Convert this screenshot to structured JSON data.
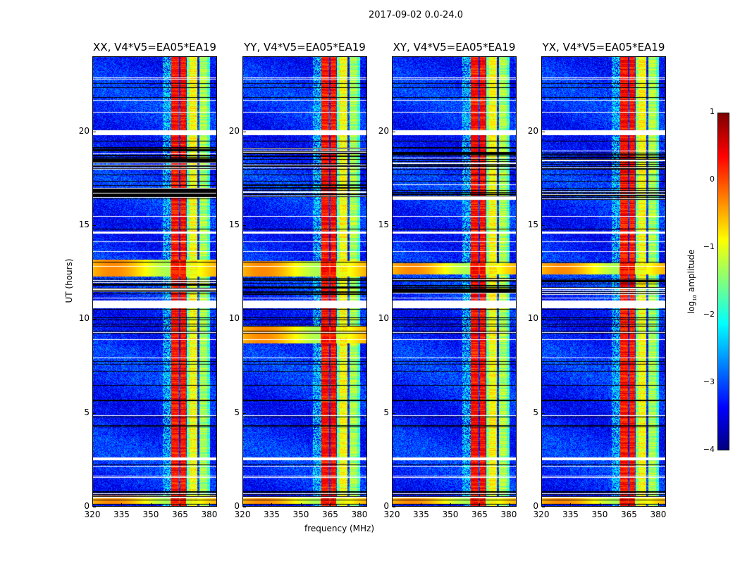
{
  "chart_data": {
    "type": "heatmap",
    "title": "2017-09-02 0.0-24.0",
    "xlabel": "frequency (MHz)",
    "ylabel": "UT (hours)",
    "xlim": [
      320,
      384
    ],
    "ylim": [
      0,
      24
    ],
    "xticks": [
      "320",
      "335",
      "350",
      "365",
      "380"
    ],
    "yticks": [
      "0",
      "5",
      "10",
      "15",
      "20"
    ],
    "panels": [
      {
        "title": "XX, V4*V5=EA05*EA19",
        "low_freq_flare_hours": [
          [
            0.1,
            0.6
          ],
          [
            12.3,
            13.2
          ]
        ]
      },
      {
        "title": "YY, V4*V5=EA05*EA19",
        "low_freq_flare_hours": [
          [
            0.1,
            0.5
          ],
          [
            12.3,
            13.1
          ],
          [
            8.7,
            9.6
          ]
        ]
      },
      {
        "title": "XY, V4*V5=EA05*EA19",
        "low_freq_flare_hours": [
          [
            0.1,
            0.5
          ],
          [
            12.4,
            13.0
          ]
        ]
      },
      {
        "title": "YX, V4*V5=EA05*EA19",
        "low_freq_flare_hours": [
          [
            0.1,
            0.5
          ],
          [
            12.4,
            13.0
          ]
        ]
      }
    ],
    "rfi_bands_mhz": [
      {
        "range": [
          360.5,
          364.3
        ],
        "log10_amp": 0.3
      },
      {
        "range": [
          365.0,
          368.0
        ],
        "log10_amp": 0.3
      },
      {
        "range": [
          368.3,
          370.0
        ],
        "log10_amp": -1.5
      },
      {
        "range": [
          370.0,
          374.0
        ],
        "log10_amp": -0.9
      },
      {
        "range": [
          375.0,
          379.0
        ],
        "log10_amp": -1.3
      },
      {
        "range": [
          379.0,
          380.5
        ],
        "log10_amp": -1.8
      }
    ],
    "background_log10_amp": -3.2,
    "flagged_gaps_hours": [
      [
        19.85,
        20.1
      ],
      [
        10.6,
        11.0
      ],
      [
        2.45,
        2.6
      ]
    ],
    "colorbar": {
      "label": "log10 amplitude",
      "label_main": "log",
      "label_sub": "10",
      "label_rest": " amplitude",
      "range": [
        -4,
        1
      ],
      "ticks": [
        "1",
        "0",
        "−1",
        "−2",
        "−3",
        "−4"
      ],
      "colormap": "jet"
    }
  }
}
